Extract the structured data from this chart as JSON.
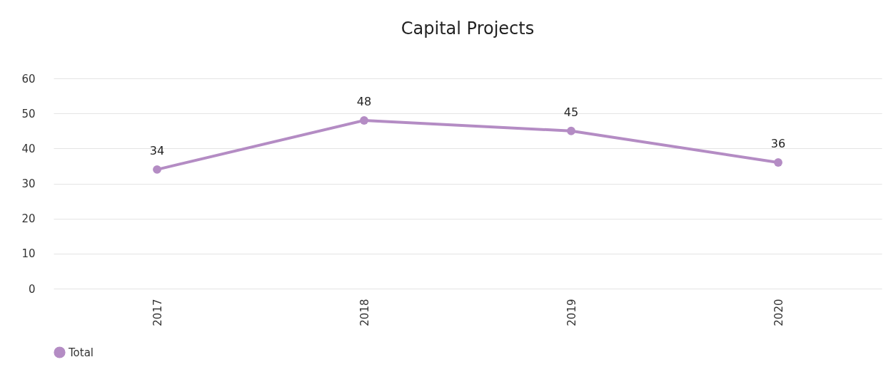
{
  "chart_data": {
    "type": "line",
    "title": "Capital Projects",
    "categories": [
      "2017",
      "2018",
      "2019",
      "2020"
    ],
    "series": [
      {
        "name": "Total",
        "color": "#b48cc4",
        "values": [
          34,
          48,
          45,
          36
        ]
      }
    ],
    "ylim": [
      0,
      60
    ],
    "yticks": [
      0,
      10,
      20,
      30,
      40,
      50,
      60
    ],
    "grid": "y",
    "legend": "bottom",
    "marker": "circle",
    "data_labels": true
  }
}
